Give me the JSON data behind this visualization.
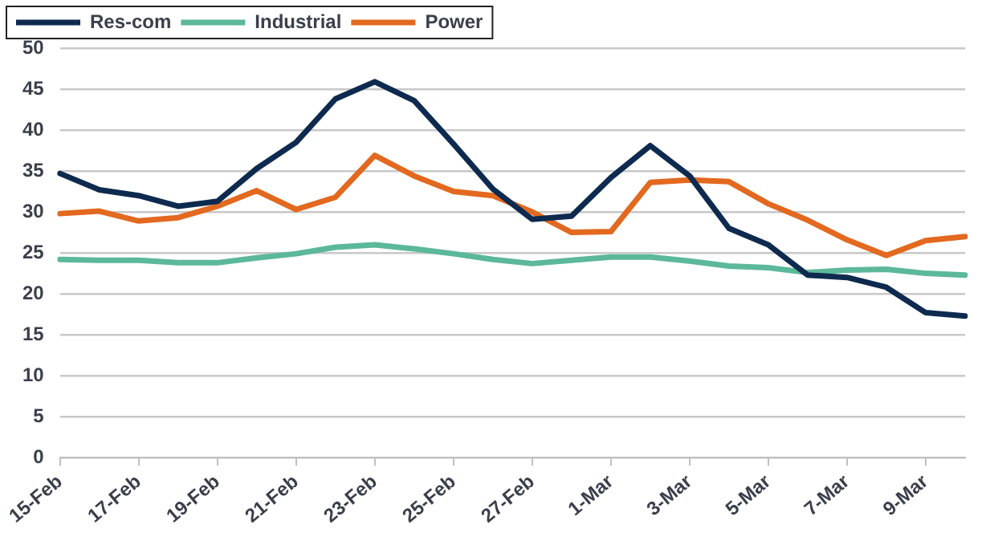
{
  "chart_data": {
    "type": "line",
    "categories": [
      "15-Feb",
      null,
      "17-Feb",
      null,
      "19-Feb",
      null,
      "21-Feb",
      null,
      "23-Feb",
      null,
      "25-Feb",
      null,
      "27-Feb",
      null,
      "1-Mar",
      null,
      "3-Mar",
      null,
      "5-Mar",
      null,
      "7-Mar",
      null,
      "9-Mar",
      null
    ],
    "series": [
      {
        "name": "Res-com",
        "color": "#0e2a4f",
        "values": [
          34.7,
          32.7,
          32,
          30.7,
          31.3,
          35.3,
          38.5,
          43.8,
          45.9,
          43.6,
          38.3,
          32.8,
          29.1,
          29.5,
          34.2,
          38.1,
          34.4,
          28,
          26,
          22.3,
          22,
          20.8,
          17.7,
          17.3
        ]
      },
      {
        "name": "Industrial",
        "color": "#5cb89a",
        "values": [
          24.2,
          24.1,
          24.1,
          23.8,
          23.8,
          24.4,
          24.9,
          25.7,
          26,
          25.5,
          24.9,
          24.2,
          23.7,
          24.1,
          24.5,
          24.5,
          24,
          23.4,
          23.2,
          22.6,
          22.9,
          23,
          22.5,
          22.3
        ]
      },
      {
        "name": "Power",
        "color": "#e2691f",
        "values": [
          29.8,
          30.1,
          28.9,
          29.3,
          30.7,
          32.6,
          30.3,
          31.8,
          36.9,
          34.4,
          32.5,
          32,
          30,
          27.5,
          27.6,
          33.6,
          33.9,
          33.7,
          31,
          29,
          26.6,
          24.7,
          26.5,
          27
        ]
      }
    ],
    "ylim": [
      0,
      50
    ],
    "yticks": [
      0,
      5,
      10,
      15,
      20,
      25,
      30,
      35,
      40,
      45,
      50
    ],
    "grid": "y",
    "legend": "top left",
    "marker": "none",
    "line_style": "solid"
  }
}
